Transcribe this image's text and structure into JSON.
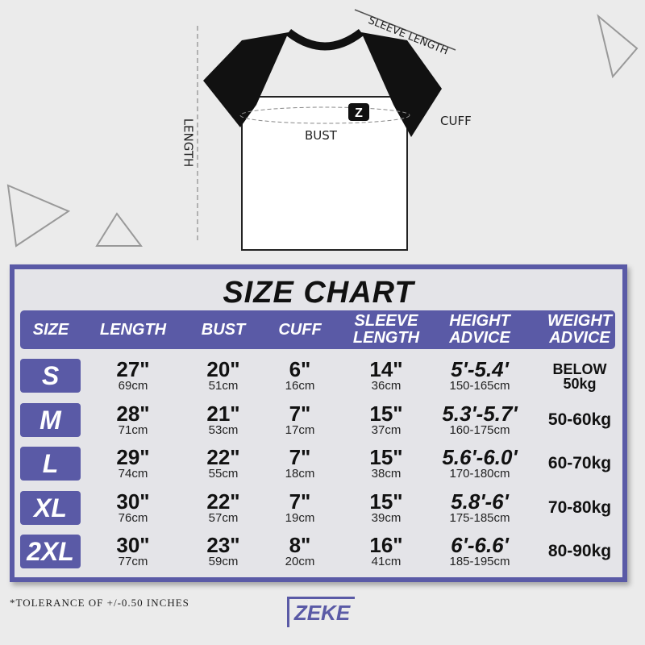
{
  "diagram": {
    "sleeve_length": "SLEEVE LENGTH",
    "cuff": "CUFF",
    "bust": "BUST",
    "length": "LENGTH",
    "chest_logo": "Z"
  },
  "title": "SIZE CHART",
  "headers": [
    "SIZE",
    "LENGTH",
    "BUST",
    "CUFF",
    "SLEEVE\nLENGTH",
    "HEIGHT\nADVICE",
    "WEIGHT\nADVICE"
  ],
  "rows": [
    {
      "size": "S",
      "length_in": "27\"",
      "length_cm": "69cm",
      "bust_in": "20\"",
      "bust_cm": "51cm",
      "cuff_in": "6\"",
      "cuff_cm": "16cm",
      "sleeve_in": "14\"",
      "sleeve_cm": "36cm",
      "height_ft": "5'-5.4'",
      "height_cm": "150-165cm",
      "weight": "BELOW 50kg"
    },
    {
      "size": "M",
      "length_in": "28\"",
      "length_cm": "71cm",
      "bust_in": "21\"",
      "bust_cm": "53cm",
      "cuff_in": "7\"",
      "cuff_cm": "17cm",
      "sleeve_in": "15\"",
      "sleeve_cm": "37cm",
      "height_ft": "5.3'-5.7'",
      "height_cm": "160-175cm",
      "weight": "50-60kg"
    },
    {
      "size": "L",
      "length_in": "29\"",
      "length_cm": "74cm",
      "bust_in": "22\"",
      "bust_cm": "55cm",
      "cuff_in": "7\"",
      "cuff_cm": "18cm",
      "sleeve_in": "15\"",
      "sleeve_cm": "38cm",
      "height_ft": "5.6'-6.0'",
      "height_cm": "170-180cm",
      "weight": "60-70kg"
    },
    {
      "size": "XL",
      "length_in": "30\"",
      "length_cm": "76cm",
      "bust_in": "22\"",
      "bust_cm": "57cm",
      "cuff_in": "7\"",
      "cuff_cm": "19cm",
      "sleeve_in": "15\"",
      "sleeve_cm": "39cm",
      "height_ft": "5.8'-6'",
      "height_cm": "175-185cm",
      "weight": "70-80kg"
    },
    {
      "size": "2XL",
      "length_in": "30\"",
      "length_cm": "77cm",
      "bust_in": "23\"",
      "bust_cm": "59cm",
      "cuff_in": "8\"",
      "cuff_cm": "20cm",
      "sleeve_in": "16\"",
      "sleeve_cm": "41cm",
      "height_ft": "6'-6.6'",
      "height_cm": "185-195cm",
      "weight": "80-90kg"
    }
  ],
  "footnote": "*TOLERANCE OF +/-0.50 INCHES",
  "brand": "ZEKE",
  "colors": {
    "accent": "#5a5aa6",
    "background": "#ebebeb",
    "sleeve": "#111111"
  }
}
